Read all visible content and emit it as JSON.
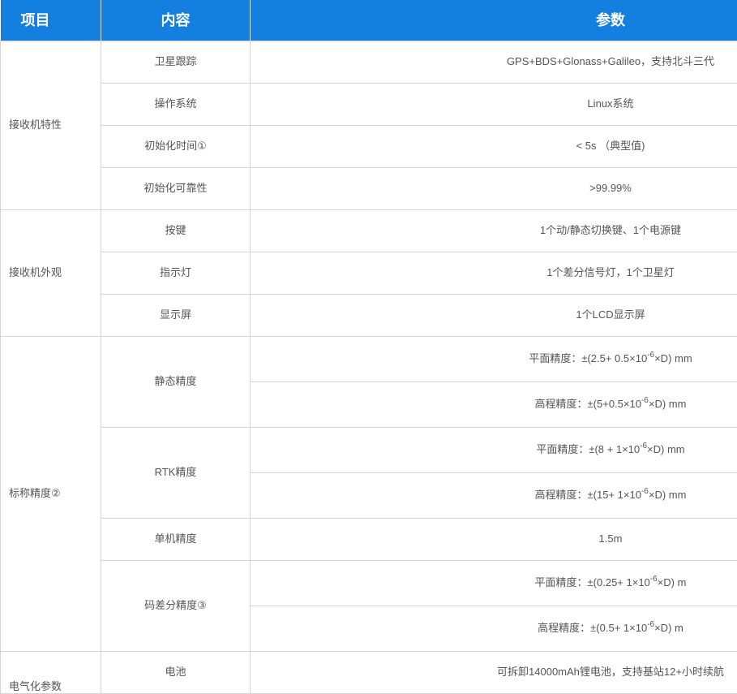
{
  "header": {
    "col1": "项目",
    "col2": "内容",
    "col3": "参数"
  },
  "groups": [
    {
      "label": "接收机特性",
      "rows": [
        {
          "item": "卫星跟踪",
          "value": "GPS+BDS+Glonass+Galileo，支持北斗三代"
        },
        {
          "item": "操作系统",
          "value": "Linux系统"
        },
        {
          "item": "初始化时间①",
          "value": "< 5s （典型值)"
        },
        {
          "item": "初始化可靠性",
          "value": ">99.99%"
        }
      ]
    },
    {
      "label": "接收机外观",
      "rows": [
        {
          "item": "按键",
          "value": "1个动/静态切换键、1个电源键"
        },
        {
          "item": "指示灯",
          "value": "1个差分信号灯，1个卫星灯"
        },
        {
          "item": "显示屏",
          "value": "1个LCD显示屏"
        }
      ]
    },
    {
      "label": "标称精度②",
      "rows": [
        {
          "item": "静态精度",
          "values": [
            {
              "pre": "平面精度：±(2.5+ 0.5×10",
              "exp": "-6",
              "post": "×D) mm"
            },
            {
              "pre": "高程精度：±(5+0.5×10",
              "exp": "-6",
              "post": "×D) mm"
            }
          ]
        },
        {
          "item": "RTK精度",
          "values": [
            {
              "pre": "平面精度：±(8 + 1×10",
              "exp": "-6",
              "post": "×D) mm"
            },
            {
              "pre": "高程精度：±(15+ 1×10",
              "exp": "-6",
              "post": "×D) mm"
            }
          ]
        },
        {
          "item": "单机精度",
          "value": "1.5m"
        },
        {
          "item": "码差分精度③",
          "values": [
            {
              "pre": "平面精度：±(0.25+ 1×10",
              "exp": "-6",
              "post": "×D) m"
            },
            {
              "pre": "高程精度：±(0.5+ 1×10",
              "exp": "-6",
              "post": "×D) m"
            }
          ]
        }
      ]
    },
    {
      "label": "电气化参数",
      "rows": [
        {
          "item": "电池",
          "value": "可拆卸14000mAh锂电池，支持基站12+小时续航"
        }
      ]
    }
  ],
  "colors": {
    "header_bg": "#1380e0",
    "text": "#555555",
    "border": "#d4d4d4"
  }
}
